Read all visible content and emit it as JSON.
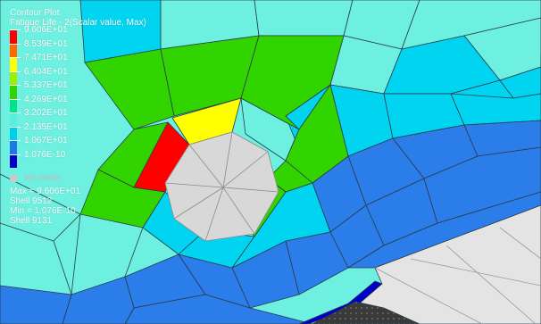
{
  "plot": {
    "title": "Contour Plot",
    "subtitle": "Fatigue Life - 2(Scalar value, Max)"
  },
  "legend": {
    "levels": [
      {
        "label": "9.606E+01",
        "color": "#ff0000"
      },
      {
        "label": "8.539E+01",
        "color": "#ff6a00"
      },
      {
        "label": "7.471E+01",
        "color": "#ffff00"
      },
      {
        "label": "6.404E+01",
        "color": "#9af000"
      },
      {
        "label": "5.337E+01",
        "color": "#32d400"
      },
      {
        "label": "4.269E+01",
        "color": "#00e38a"
      },
      {
        "label": "3.202E+01",
        "color": "#58f0dc"
      },
      {
        "label": "2.135E+01",
        "color": "#00cfe8"
      },
      {
        "label": "1.067E+01",
        "color": "#1e78e6"
      },
      {
        "label": "1.076E-10",
        "color": "#0000c8"
      }
    ],
    "no_result_label": "No result",
    "no_result_color": "#c8c8c8"
  },
  "stats": {
    "max_line": "Max = 9.606E+01",
    "max_elem": "Shell 9512",
    "min_line": "Min = 1.076E-10",
    "min_elem": "Shell 9131"
  },
  "colors": {
    "cyan_light": "#6df0e0",
    "cyan": "#00d4f0",
    "blue": "#2b7de9",
    "green": "#32d400",
    "yellow": "#ffff00",
    "red": "#ff0000",
    "hole_gray": "#d8d8d8",
    "edge_blue": "#0000c8",
    "base_gray": "#e4e4e4",
    "dark_gray": "#3c3c3c"
  }
}
